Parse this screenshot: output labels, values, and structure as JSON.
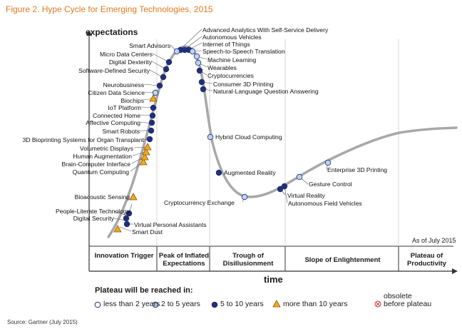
{
  "title": "Figure 2. Hype Cycle for Emerging Technologies, 2015",
  "y_axis_label": "expectations",
  "x_axis_label": "time",
  "as_of": "As of July 2015",
  "phases": [
    "Innovation Trigger",
    "Peak of Inflated Expectations",
    "Trough of Disillusionment",
    "Slope of Enlightenment",
    "Plateau of Productivity"
  ],
  "legend": {
    "title": "Plateau will be reached in:",
    "items": [
      {
        "symbol": "white-circle",
        "label": "less than 2 years"
      },
      {
        "symbol": "light-blue-circle",
        "label": "2 to 5 years"
      },
      {
        "symbol": "dark-blue-circle",
        "label": "5 to 10 years"
      },
      {
        "symbol": "orange-triangle",
        "label": "more than 10 years"
      },
      {
        "symbol": "red-crossed-circle",
        "label": "obsolete before plateau",
        "line1": "obsolete",
        "line2": "before plateau"
      }
    ]
  },
  "source": "Source: Gartner (July 2015)",
  "colors": {
    "title": "#e07a1f",
    "curve": "#9a9a9a",
    "dark_blue": "#1f2f78",
    "light_blue": "#bcd3ee",
    "orange": "#f5a623",
    "obsolete": "#d23a3a"
  },
  "technologies": [
    {
      "name": "Smart Dust",
      "category": "more than 10 years"
    },
    {
      "name": "Virtual Personal Assistants",
      "category": "5 to 10 years"
    },
    {
      "name": "Digital Security",
      "category": "5 to 10 years"
    },
    {
      "name": "People-Literate Technology",
      "category": "5 to 10 years"
    },
    {
      "name": "Bioacoustic Sensing",
      "category": "more than 10 years"
    },
    {
      "name": "Quantum Computing",
      "category": "more than 10 years"
    },
    {
      "name": "Brain-Computer Interface",
      "category": "more than 10 years"
    },
    {
      "name": "Human Augmentation",
      "category": "more than 10 years"
    },
    {
      "name": "Volumetric Displays",
      "category": "more than 10 years"
    },
    {
      "name": "3D Bioprinting Systems for Organ Transplant",
      "category": "5 to 10 years"
    },
    {
      "name": "Smart Robots",
      "category": "5 to 10 years"
    },
    {
      "name": "Affective Computing",
      "category": "5 to 10 years"
    },
    {
      "name": "Connected Home",
      "category": "5 to 10 years"
    },
    {
      "name": "IoT Platform",
      "category": "5 to 10 years"
    },
    {
      "name": "Biochips",
      "category": "more than 10 years"
    },
    {
      "name": "Citizen Data Science",
      "category": "2 to 5 years"
    },
    {
      "name": "Neurobusiness",
      "category": "5 to 10 years"
    },
    {
      "name": "Software-Defined Security",
      "category": "5 to 10 years"
    },
    {
      "name": "Digital Dexterity",
      "category": "5 to 10 years"
    },
    {
      "name": "Micro Data Centers",
      "category": "5 to 10 years"
    },
    {
      "name": "Smart Advisors",
      "category": "5 to 10 years"
    },
    {
      "name": "Advanced Analytics With Self-Service Delivery",
      "category": "2 to 5 years"
    },
    {
      "name": "Autonomous Vehicles",
      "category": "5 to 10 years"
    },
    {
      "name": "Internet of Things",
      "category": "5 to 10 years"
    },
    {
      "name": "Speech-to-Speech Translation",
      "category": "2 to 5 years"
    },
    {
      "name": "Machine Learning",
      "category": "2 to 5 years"
    },
    {
      "name": "Wearables",
      "category": "2 to 5 years"
    },
    {
      "name": "Cryptocurrencies",
      "category": "5 to 10 years"
    },
    {
      "name": "Consumer 3D Printing",
      "category": "5 to 10 years"
    },
    {
      "name": "Natural-Language Question Answering",
      "category": "5 to 10 years"
    },
    {
      "name": "Hybrid Cloud Computing",
      "category": "2 to 5 years"
    },
    {
      "name": "Augmented Reality",
      "category": "5 to 10 years"
    },
    {
      "name": "Cryptocurrency Exchange",
      "category": "2 to 5 years"
    },
    {
      "name": "Virtual Reality",
      "category": "5 to 10 years"
    },
    {
      "name": "Autonomous Field Vehicles",
      "category": "5 to 10 years"
    },
    {
      "name": "Gesture Control",
      "category": "2 to 5 years"
    },
    {
      "name": "Enterprise 3D Printing",
      "category": "2 to 5 years"
    }
  ]
}
